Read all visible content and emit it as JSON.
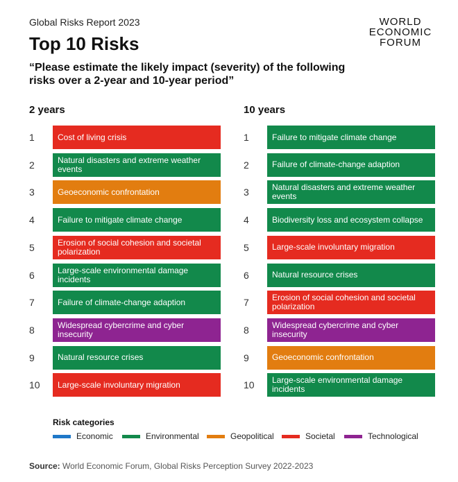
{
  "header": {
    "report": "Global Risks Report 2023",
    "title": "Top 10 Risks",
    "question": "“Please estimate the likely impact (severity) of the following risks over a 2-year and 10-year period”"
  },
  "logo": [
    "WORLD",
    "ECONOMIC",
    "FORUM"
  ],
  "colors": {
    "Economic": "#1f78c8",
    "Environmental": "#12894b",
    "Geopolitical": "#e27d10",
    "Societal": "#e52b20",
    "Technological": "#8e2491"
  },
  "chart_data": {
    "type": "table",
    "columns": [
      {
        "heading": "2 years",
        "items": [
          {
            "rank": "1",
            "label": "Cost of living crisis",
            "category": "Societal"
          },
          {
            "rank": "2",
            "label": "Natural disasters and extreme weather events",
            "category": "Environmental"
          },
          {
            "rank": "3",
            "label": "Geoeconomic confrontation",
            "category": "Geopolitical"
          },
          {
            "rank": "4",
            "label": "Failure to mitigate climate change",
            "category": "Environmental"
          },
          {
            "rank": "5",
            "label": "Erosion of social cohesion and societal polarization",
            "category": "Societal"
          },
          {
            "rank": "6",
            "label": "Large-scale environmental damage incidents",
            "category": "Environmental"
          },
          {
            "rank": "7",
            "label": "Failure of climate-change adaption",
            "category": "Environmental"
          },
          {
            "rank": "8",
            "label": "Widespread cybercrime and cyber insecurity",
            "category": "Technological"
          },
          {
            "rank": "9",
            "label": "Natural resource crises",
            "category": "Environmental"
          },
          {
            "rank": "10",
            "label": "Large-scale involuntary migration",
            "category": "Societal"
          }
        ]
      },
      {
        "heading": "10 years",
        "items": [
          {
            "rank": "1",
            "label": "Failure to mitigate climate change",
            "category": "Environmental"
          },
          {
            "rank": "2",
            "label": "Failure of climate-change adaption",
            "category": "Environmental"
          },
          {
            "rank": "3",
            "label": "Natural disasters and extreme weather events",
            "category": "Environmental"
          },
          {
            "rank": "4",
            "label": "Biodiversity loss and ecosystem collapse",
            "category": "Environmental"
          },
          {
            "rank": "5",
            "label": "Large-scale involuntary migration",
            "category": "Societal"
          },
          {
            "rank": "6",
            "label": "Natural resource crises",
            "category": "Environmental"
          },
          {
            "rank": "7",
            "label": "Erosion of social cohesion and societal polarization",
            "category": "Societal"
          },
          {
            "rank": "8",
            "label": "Widespread cybercrime and cyber insecurity",
            "category": "Technological"
          },
          {
            "rank": "9",
            "label": "Geoeconomic confrontation",
            "category": "Geopolitical"
          },
          {
            "rank": "10",
            "label": "Large-scale environmental damage incidents",
            "category": "Environmental"
          }
        ]
      }
    ],
    "legend": {
      "title": "Risk categories",
      "items": [
        "Economic",
        "Environmental",
        "Geopolitical",
        "Societal",
        "Technological"
      ]
    }
  },
  "source": {
    "label": "Source:",
    "text": " World Economic Forum, Global Risks Perception Survey 2022-2023"
  }
}
